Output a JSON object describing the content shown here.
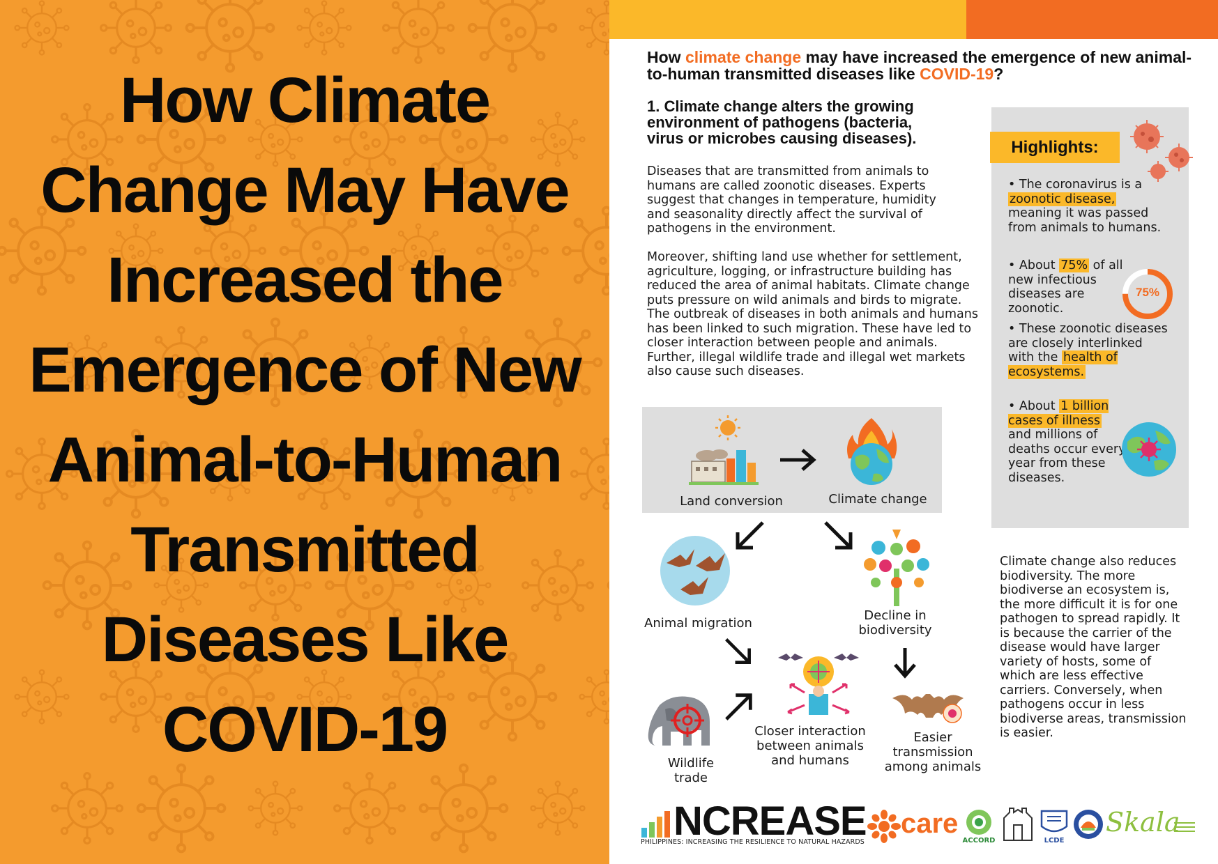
{
  "left_panel": {
    "title_lines": [
      "How Climate",
      "Change May Have",
      "Increased the",
      "Emergence of New",
      "Animal-to-Human",
      "Transmitted",
      "Diseases Like",
      "COVID-19"
    ],
    "background_color": "#F49B2E"
  },
  "right_panel": {
    "heading": {
      "part1": "How ",
      "part2": "climate change",
      "part3": " may have increased the emergence of new animal-to-human transmitted diseases like ",
      "part4": "COVID-19",
      "part5": "?"
    },
    "section_title": "1.  Climate change alters the growing environment of pathogens (bacteria, virus or microbes causing diseases).",
    "paragraph1": "Diseases that are transmitted from animals to humans are called zoonotic diseases. Experts suggest that changes in temperature, humidity and seasonality directly affect the survival of pathogens in the environment.",
    "paragraph2": "Moreover, shifting land use whether for settlement, agriculture, logging, or infrastructure building has reduced the area of animal habitats. Climate change puts pressure on wild animals and birds to migrate. The outbreak of diseases in both animals and humans has been linked to such migration. These have led to closer interaction between people and animals. Further, illegal wildlife trade and illegal wet markets also cause such diseases.",
    "paragraph3": "Climate change also reduces biodiversity. The more biodiverse an ecosystem is, the more difficult it is for one pathogen to spread rapidly. It is because the carrier of the disease would have larger variety of hosts, some of which are less effective carriers. Conversely, when pathogens occur in less biodiverse areas, transmission is easier."
  },
  "highlights": {
    "label": "Highlights:",
    "item1": {
      "a": "• The coronavirus is a ",
      "b": "zoonotic disease,",
      "c": " meaning it was passed from animals to humans."
    },
    "item2": {
      "a": "• About ",
      "b": "75%",
      "c": " of all new infectious diseases are zoonotic."
    },
    "item3": {
      "a": "• These zoonotic diseases are closely interlinked with the ",
      "b": "health of ecosystems."
    },
    "item4": {
      "a": "• About ",
      "b": "1 billion cases of illness",
      "c": " and millions of deaths occur every year from these diseases."
    },
    "donut_label": "75%",
    "donut_value": 0.75
  },
  "diagram": {
    "land_conversion": "Land conversion",
    "climate_change": "Climate change",
    "animal_migration": "Animal migration",
    "decline_biodiversity": "Decline in biodiversity",
    "wildlife_trade": "Wildlife trade",
    "closer_interaction": "Closer interaction between animals and humans",
    "easier_transmission": "Easier transmission among animals"
  },
  "logos": {
    "increase": "NCREASE",
    "increase_sub": "PHILIPPINES: INCREASING THE RESILIENCE TO NATURAL HAZARDS",
    "care": "care",
    "accord": "ACCORD",
    "lcde": "LCDE",
    "skala": "Skala"
  },
  "colors": {
    "yellow": "#FBB829",
    "orange": "#F26C22",
    "gray_box": "#DEDEDE"
  }
}
